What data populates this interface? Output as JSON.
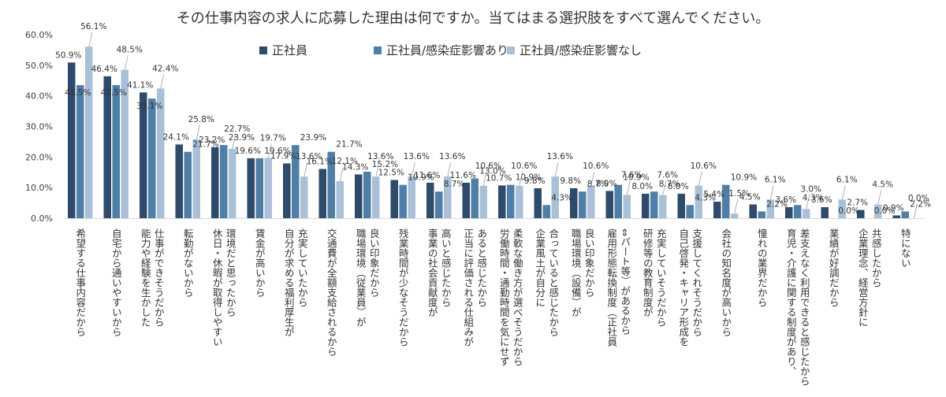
{
  "chart_data": {
    "type": "bar",
    "title": "その仕事内容の求人に応募した理由は何ですか。当てはまる選択肢をすべて選んでください。",
    "ylim": [
      0,
      60
    ],
    "yticks": [
      "0.0%",
      "10.0%",
      "20.0%",
      "30.0%",
      "40.0%",
      "50.0%",
      "60.0%"
    ],
    "grid": false,
    "legend_position": "top",
    "series": [
      {
        "name": "正社員",
        "color": "#2e4b6c",
        "values": [
          50.9,
          46.4,
          41.1,
          24.1,
          23.2,
          19.6,
          17.9,
          16.1,
          14.3,
          12.5,
          11.6,
          11.6,
          10.7,
          9.8,
          9.8,
          8.9,
          8.0,
          8.0,
          5.4,
          4.5,
          3.6,
          3.6,
          2.7,
          0.9
        ],
        "labels": [
          "50.9%",
          "46.4%",
          "41.1%",
          "24.1%",
          "23.2%",
          "19.6%",
          "17.9%",
          "16.1%",
          "14.3%",
          "12.5%",
          "11.6%",
          "11.6%",
          "10.7%",
          "9.8%",
          "9.8%",
          "8.9%",
          "8.0%",
          "8.0%",
          "5.4%",
          "4.5%",
          "3.6%",
          "3.6%",
          "2.7%",
          "0.9%"
        ]
      },
      {
        "name": "正社員/感染症影響あり",
        "color": "#4f7ea7",
        "values": [
          43.5,
          43.5,
          39.1,
          21.7,
          23.9,
          19.6,
          23.9,
          21.7,
          15.2,
          10.9,
          8.7,
          13.0,
          10.9,
          4.3,
          8.7,
          10.9,
          8.7,
          4.3,
          10.9,
          2.2,
          4.3,
          0.0,
          0.0,
          2.2
        ],
        "labels": [
          "43.5%",
          "43.5%",
          "39.1%",
          "21.7%",
          "23.9%",
          "19.6%",
          "23.9%",
          "21.7%",
          "15.2%",
          "10.9%",
          "8.7%",
          "13.0%",
          "10.9%",
          "4.3%",
          "8.7%",
          "10.9%",
          "8.7%",
          "4.3%",
          "10.9%",
          "2.2%",
          "4.3%",
          "0.0%",
          "0.0%",
          "2.2%"
        ]
      },
      {
        "name": "正社員/感染症影響なし",
        "color": "#a9c0d8",
        "values": [
          56.1,
          48.5,
          42.4,
          25.8,
          22.7,
          19.7,
          13.6,
          12.1,
          13.6,
          13.6,
          13.6,
          10.6,
          10.6,
          13.6,
          10.6,
          7.6,
          7.6,
          10.6,
          1.5,
          6.1,
          3.0,
          6.1,
          4.5,
          0.0
        ],
        "labels": [
          "56.1%",
          "48.5%",
          "42.4%",
          "25.8%",
          "22.7%",
          "19.7%",
          "13.6%",
          "12.1%",
          "13.6%",
          "13.6%",
          "13.6%",
          "10.6%",
          "10.6%",
          "13.6%",
          "10.6%",
          "7.6%",
          "7.6%",
          "10.6%",
          "1.5%",
          "6.1%",
          "3.0%",
          "6.1%",
          "4.5%",
          "0.0%"
        ]
      }
    ],
    "categories": [
      [
        "希望する仕事内容だから"
      ],
      [
        "自宅から通いやすいから"
      ],
      [
        "仕事ができそうだから",
        "能力や経験を生かした"
      ],
      [
        "転勤がないから"
      ],
      [
        "環境だと思ったから",
        "休日・休暇が取得しやすい"
      ],
      [
        "賃金が高いから"
      ],
      [
        "充実していたから",
        "自分が求める福利厚生が"
      ],
      [
        "交通費が全額支給されるから"
      ],
      [
        "良い印象だから",
        "職場環境（従業員）が"
      ],
      [
        "残業時間が少なそうだから"
      ],
      [
        "高いと感じたから",
        "事業の社会貢献度が"
      ],
      [
        "あると感じたから",
        "正当に評価される仕組みが"
      ],
      [
        "柔軟な働き方が選べそうだから",
        "労働時間・通勤時間を気にせず"
      ],
      [
        "合っていると感じたから",
        "企業風土が自分に"
      ],
      [
        "良い印象だから",
        "職場環境（設備）が"
      ],
      [
        "⇔パート等）があるから",
        "雇用形態転換制度（正社員"
      ],
      [
        "充実していそうだから",
        "研修等の教育制度が"
      ],
      [
        "支援してくれそうだから",
        "自己啓発・キャリア形成を"
      ],
      [
        "会社の知名度が高いから"
      ],
      [
        "憧れの業界だから"
      ],
      [
        "差支えなく利用できると感じたから",
        "育児・介護に関する制度があり、"
      ],
      [
        "業績が好調だから"
      ],
      [
        "共感したから",
        "企業理念、経営方針に"
      ],
      [
        "特にない"
      ]
    ]
  }
}
